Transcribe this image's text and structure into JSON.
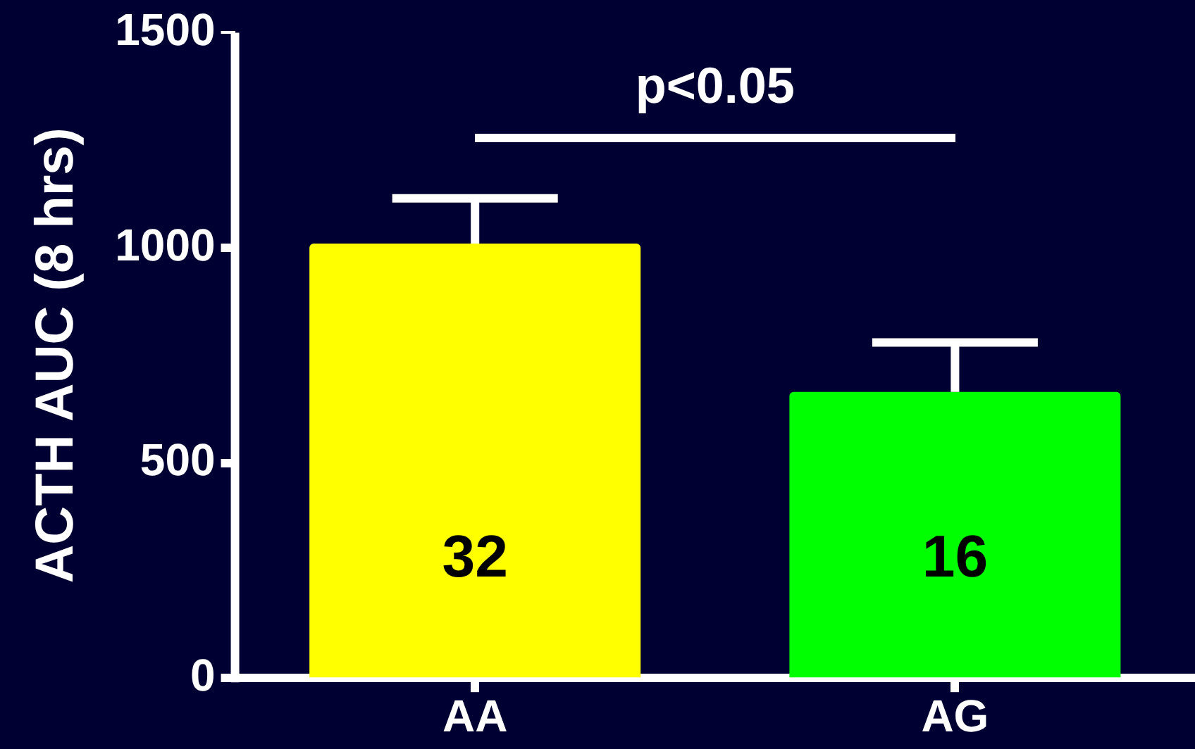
{
  "chart_data": {
    "type": "bar",
    "ylabel": "ACTH AUC (8 hrs)",
    "categories": [
      "AA",
      "AG"
    ],
    "values": [
      1010,
      665
    ],
    "colors": [
      "#ffff00",
      "#00ff00"
    ],
    "errors": [
      [
        1010,
        1115
      ],
      [
        665,
        780
      ]
    ],
    "ylim": [
      0,
      1500
    ],
    "yticks": [
      0,
      500,
      1000,
      1500
    ],
    "grid": false,
    "annotations": [
      "32",
      "16",
      "p<0.05"
    ]
  }
}
